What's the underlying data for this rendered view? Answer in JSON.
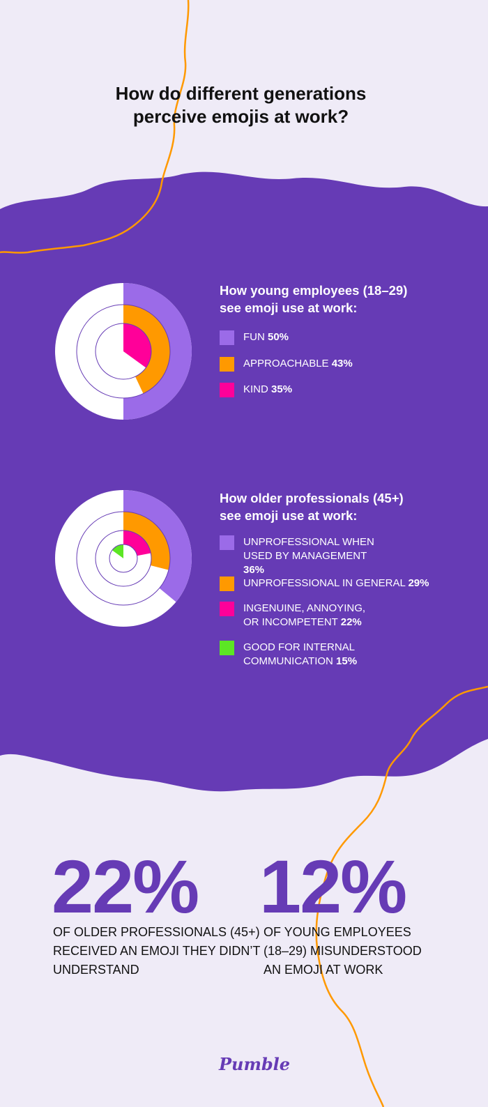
{
  "title": [
    "How do different generations",
    "perceive emojis at work?"
  ],
  "colors": {
    "background": "#efebf7",
    "band": "#663bb5",
    "light_purple": "#9b6be8",
    "orange": "#ff9900",
    "pink": "#ff0099",
    "green": "#5ce624",
    "accent_line": "#ff9900"
  },
  "chart_data": [
    {
      "type": "pie",
      "variant": "concentric radial rings",
      "title": [
        "How young employees (18–29)",
        "see emoji use at work:"
      ],
      "series": [
        {
          "label": "FUN",
          "value": 50,
          "display": "50%",
          "color": "#9b6be8"
        },
        {
          "label": "APPROACHABLE",
          "value": 43,
          "display": "43%",
          "color": "#ff9900"
        },
        {
          "label": "KIND",
          "value": 35,
          "display": "35%",
          "color": "#ff0099"
        }
      ]
    },
    {
      "type": "pie",
      "variant": "concentric radial rings",
      "title": [
        "How older professionals (45+)",
        "see emoji use at work:"
      ],
      "series": [
        {
          "label": "UNPROFESSIONAL WHEN USED BY MANAGEMENT",
          "value": 36,
          "display": "36%",
          "color": "#9b6be8"
        },
        {
          "label": "UNPROFESSIONAL IN GENERAL",
          "value": 29,
          "display": "29%",
          "color": "#ff9900"
        },
        {
          "label": "INGENUINE, ANNOYING, OR INCOMPETENT",
          "value": 22,
          "display": "22%",
          "color": "#ff0099"
        },
        {
          "label": "GOOD FOR INTERNAL COMMUNICATION",
          "value": 15,
          "display": "15%",
          "color": "#5ce624",
          "direction": "counterclockwise"
        }
      ]
    }
  ],
  "stats": [
    {
      "value": "22%",
      "caption": "OF OLDER PROFESSIONALS (45+) RECEIVED AN EMOJI THEY DIDN’T UNDERSTAND"
    },
    {
      "value": "12%",
      "caption": "OF YOUNG EMPLOYEES (18–29) MISUNDERSTOOD AN EMOJI AT WORK"
    }
  ],
  "logo": "Pumble"
}
